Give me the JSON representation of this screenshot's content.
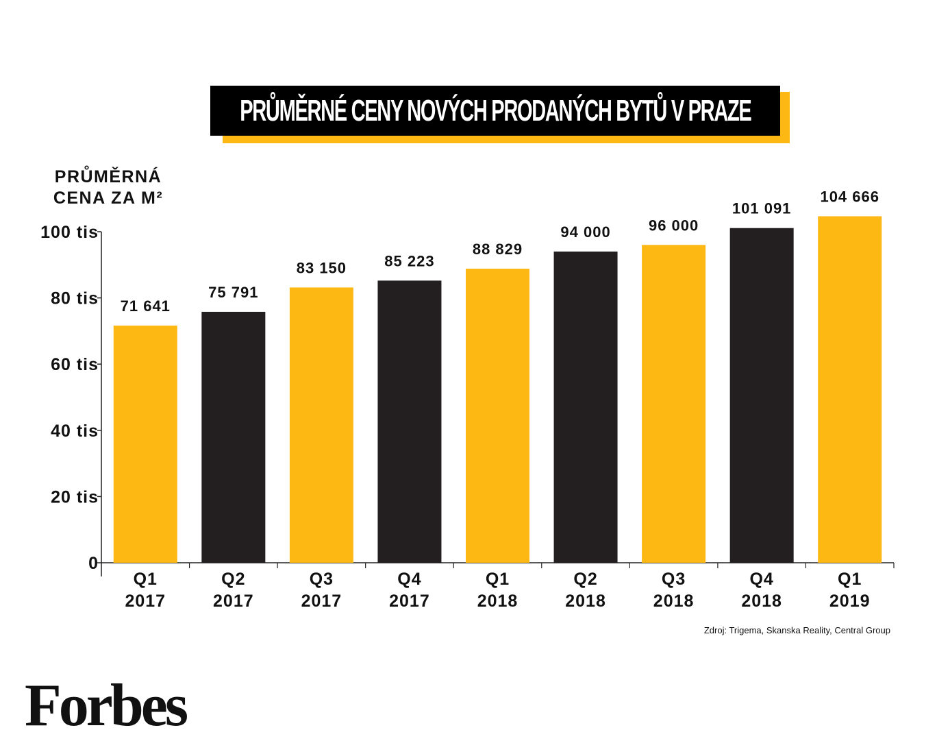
{
  "title": "PRŮMĚRNÉ CENY NOVÝCH PRODANÝCH BYTŮ V PRAZE",
  "ylabel_lines": [
    "PRŮMĚRNÁ",
    "CENA ZA M²"
  ],
  "source": "Zdroj: Trigema, Skanska Reality, Central Group",
  "logo_text": "Forbes",
  "colors": {
    "yellow": "#FDB813",
    "black": "#231F20"
  },
  "chart_data": {
    "type": "bar",
    "categories": [
      [
        "Q1",
        "2017"
      ],
      [
        "Q2",
        "2017"
      ],
      [
        "Q3",
        "2017"
      ],
      [
        "Q4",
        "2017"
      ],
      [
        "Q1",
        "2018"
      ],
      [
        "Q2",
        "2018"
      ],
      [
        "Q3",
        "2018"
      ],
      [
        "Q4",
        "2018"
      ],
      [
        "Q1",
        "2019"
      ]
    ],
    "values": [
      71641,
      75791,
      83150,
      85223,
      88829,
      94000,
      96000,
      101091,
      104666
    ],
    "value_labels": [
      "71 641",
      "75 791",
      "83 150",
      "85 223",
      "88 829",
      "94 000",
      "96 000",
      "101 091",
      "104 666"
    ],
    "bar_colors": [
      "yellow",
      "black",
      "yellow",
      "black",
      "yellow",
      "black",
      "yellow",
      "black",
      "yellow"
    ],
    "yticks": [
      0,
      20000,
      40000,
      60000,
      80000,
      100000
    ],
    "ytick_labels": [
      "0",
      "20 tis",
      "40 tis",
      "60 tis",
      "80 tis",
      "100 tis"
    ],
    "ylim": [
      0,
      100000
    ],
    "grid": false,
    "legend": "none"
  }
}
